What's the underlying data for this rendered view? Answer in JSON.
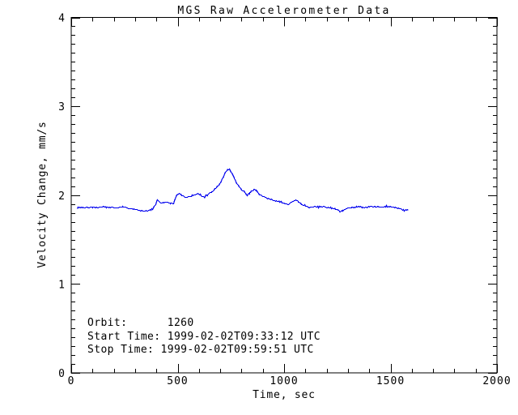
{
  "window": {
    "background": "#ffffff",
    "text_color": "#000000"
  },
  "chart_data": {
    "type": "line",
    "title": "MGS Raw Accelerometer Data",
    "xlabel": "Time, sec",
    "ylabel": "Velocity Change, mm/s",
    "xlim": [
      0,
      2000
    ],
    "ylim": [
      0,
      4
    ],
    "x_major_ticks": [
      0,
      500,
      1000,
      1500,
      2000
    ],
    "x_minor_interval": 100,
    "y_major_ticks": [
      0,
      1,
      2,
      3,
      4
    ],
    "y_minor_interval": 0.1,
    "grid": false,
    "legend": "none",
    "line_color": "#0000ee",
    "noise_amplitude": 0.007,
    "series": [
      {
        "name": "velocity_change",
        "points": [
          [
            27,
            1.861
          ],
          [
            45,
            1.868
          ],
          [
            70,
            1.87
          ],
          [
            100,
            1.869
          ],
          [
            130,
            1.868
          ],
          [
            160,
            1.87
          ],
          [
            190,
            1.866
          ],
          [
            215,
            1.861
          ],
          [
            240,
            1.873
          ],
          [
            262,
            1.859
          ],
          [
            285,
            1.848
          ],
          [
            305,
            1.843
          ],
          [
            330,
            1.825
          ],
          [
            350,
            1.829
          ],
          [
            370,
            1.836
          ],
          [
            385,
            1.852
          ],
          [
            395,
            1.9
          ],
          [
            403,
            1.952
          ],
          [
            410,
            1.934
          ],
          [
            420,
            1.916
          ],
          [
            435,
            1.926
          ],
          [
            450,
            1.92
          ],
          [
            465,
            1.913
          ],
          [
            480,
            1.907
          ],
          [
            492,
            1.985
          ],
          [
            505,
            2.03
          ],
          [
            520,
            2.0
          ],
          [
            540,
            1.978
          ],
          [
            558,
            1.988
          ],
          [
            578,
            2.008
          ],
          [
            595,
            2.018
          ],
          [
            610,
            1.999
          ],
          [
            625,
            1.978
          ],
          [
            640,
            2.014
          ],
          [
            658,
            2.034
          ],
          [
            675,
            2.078
          ],
          [
            695,
            2.13
          ],
          [
            710,
            2.195
          ],
          [
            722,
            2.262
          ],
          [
            735,
            2.3
          ],
          [
            742,
            2.294
          ],
          [
            752,
            2.258
          ],
          [
            765,
            2.196
          ],
          [
            776,
            2.14
          ],
          [
            788,
            2.1
          ],
          [
            800,
            2.07
          ],
          [
            815,
            2.03
          ],
          [
            825,
            2.008
          ],
          [
            838,
            2.028
          ],
          [
            855,
            2.068
          ],
          [
            868,
            2.058
          ],
          [
            888,
            2.006
          ],
          [
            907,
            1.982
          ],
          [
            926,
            1.962
          ],
          [
            950,
            1.946
          ],
          [
            975,
            1.932
          ],
          [
            998,
            1.915
          ],
          [
            1018,
            1.9
          ],
          [
            1040,
            1.934
          ],
          [
            1052,
            1.952
          ],
          [
            1065,
            1.93
          ],
          [
            1080,
            1.905
          ],
          [
            1095,
            1.89
          ],
          [
            1112,
            1.862
          ],
          [
            1135,
            1.874
          ],
          [
            1160,
            1.868
          ],
          [
            1185,
            1.874
          ],
          [
            1210,
            1.862
          ],
          [
            1237,
            1.855
          ],
          [
            1260,
            1.82
          ],
          [
            1275,
            1.826
          ],
          [
            1290,
            1.85
          ],
          [
            1315,
            1.868
          ],
          [
            1340,
            1.874
          ],
          [
            1365,
            1.868
          ],
          [
            1385,
            1.862
          ],
          [
            1402,
            1.878
          ],
          [
            1427,
            1.874
          ],
          [
            1450,
            1.868
          ],
          [
            1478,
            1.878
          ],
          [
            1502,
            1.874
          ],
          [
            1528,
            1.862
          ],
          [
            1548,
            1.85
          ],
          [
            1565,
            1.832
          ],
          [
            1573,
            1.841
          ],
          [
            1580,
            1.836
          ]
        ]
      }
    ],
    "annotations": {
      "orbit_line": "Orbit:      1260",
      "start_line": "Start Time: 1999-02-02T09:33:12 UTC",
      "stop_line": "Stop Time: 1999-02-02T09:59:51 UTC"
    }
  }
}
